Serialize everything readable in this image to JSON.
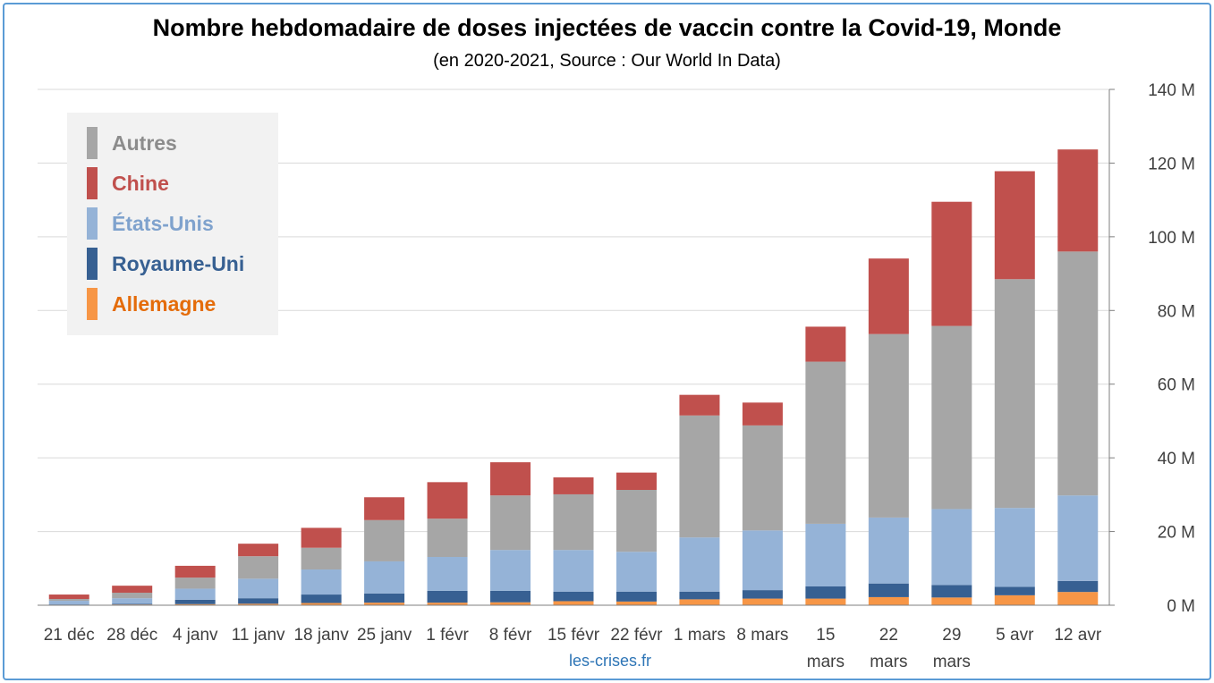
{
  "chart_data": {
    "type": "bar",
    "stacked": true,
    "title": "Nombre hebdomadaire de doses injectées de vaccin contre la Covid-19, Monde",
    "subtitle": "(en 2020-2021, Source : Our World In Data)",
    "source_label": "les-crises.fr",
    "categories": [
      "21 déc",
      "28 déc",
      "4 janv",
      "11 janv",
      "18 janv",
      "25 janv",
      "1 févr",
      "8 févr",
      "15 févr",
      "22 févr",
      "1 mars",
      "8 mars",
      "15 mars",
      "22 mars",
      "29 mars",
      "5 avr",
      "12 avr"
    ],
    "y_axis": {
      "position": "right",
      "ylim": [
        0,
        140
      ],
      "ticks": [
        0,
        20,
        40,
        60,
        80,
        100,
        120,
        140
      ],
      "tick_labels": [
        "0 M",
        "20 M",
        "40 M",
        "60 M",
        "80 M",
        "100 M",
        "120 M",
        "140 M"
      ]
    },
    "grid": true,
    "legend_position": "top-left",
    "series": [
      {
        "name": "Allemagne",
        "color": "#f79646",
        "label_color": "#e46c0a",
        "values": [
          0.1,
          0.2,
          0.3,
          0.4,
          0.6,
          0.7,
          0.7,
          0.8,
          1.1,
          1.0,
          1.6,
          1.8,
          1.8,
          2.2,
          2.1,
          2.7,
          3.6
        ]
      },
      {
        "name": "Royaume-Uni",
        "color": "#376092",
        "label_color": "#376092",
        "values": [
          0.1,
          0.2,
          1.2,
          1.5,
          2.3,
          2.5,
          3.2,
          3.1,
          2.6,
          2.7,
          2.1,
          2.3,
          3.3,
          3.7,
          3.4,
          2.3,
          3.0
        ]
      },
      {
        "name": "États-Unis",
        "color": "#95b3d7",
        "label_color": "#7fa2cd",
        "values": [
          1.0,
          1.5,
          3.0,
          5.3,
          6.8,
          8.7,
          9.2,
          11.1,
          11.3,
          10.8,
          14.7,
          16.2,
          17.0,
          17.9,
          20.6,
          21.4,
          23.2
        ]
      },
      {
        "name": "Autres",
        "color": "#a6a6a6",
        "label_color": "#8c8c8c",
        "values": [
          0.5,
          1.5,
          3.0,
          6.1,
          5.9,
          11.2,
          10.4,
          14.8,
          15.1,
          16.8,
          33.1,
          28.5,
          44.0,
          49.8,
          49.7,
          62.1,
          66.2
        ]
      },
      {
        "name": "Chine",
        "color": "#c0504d",
        "label_color": "#c0504d",
        "values": [
          1.2,
          1.9,
          3.2,
          3.4,
          5.4,
          6.2,
          9.9,
          9.0,
          4.6,
          4.7,
          5.6,
          6.2,
          9.5,
          20.5,
          33.7,
          29.3,
          27.7
        ]
      }
    ]
  },
  "legend_order": [
    3,
    4,
    2,
    1,
    0
  ]
}
